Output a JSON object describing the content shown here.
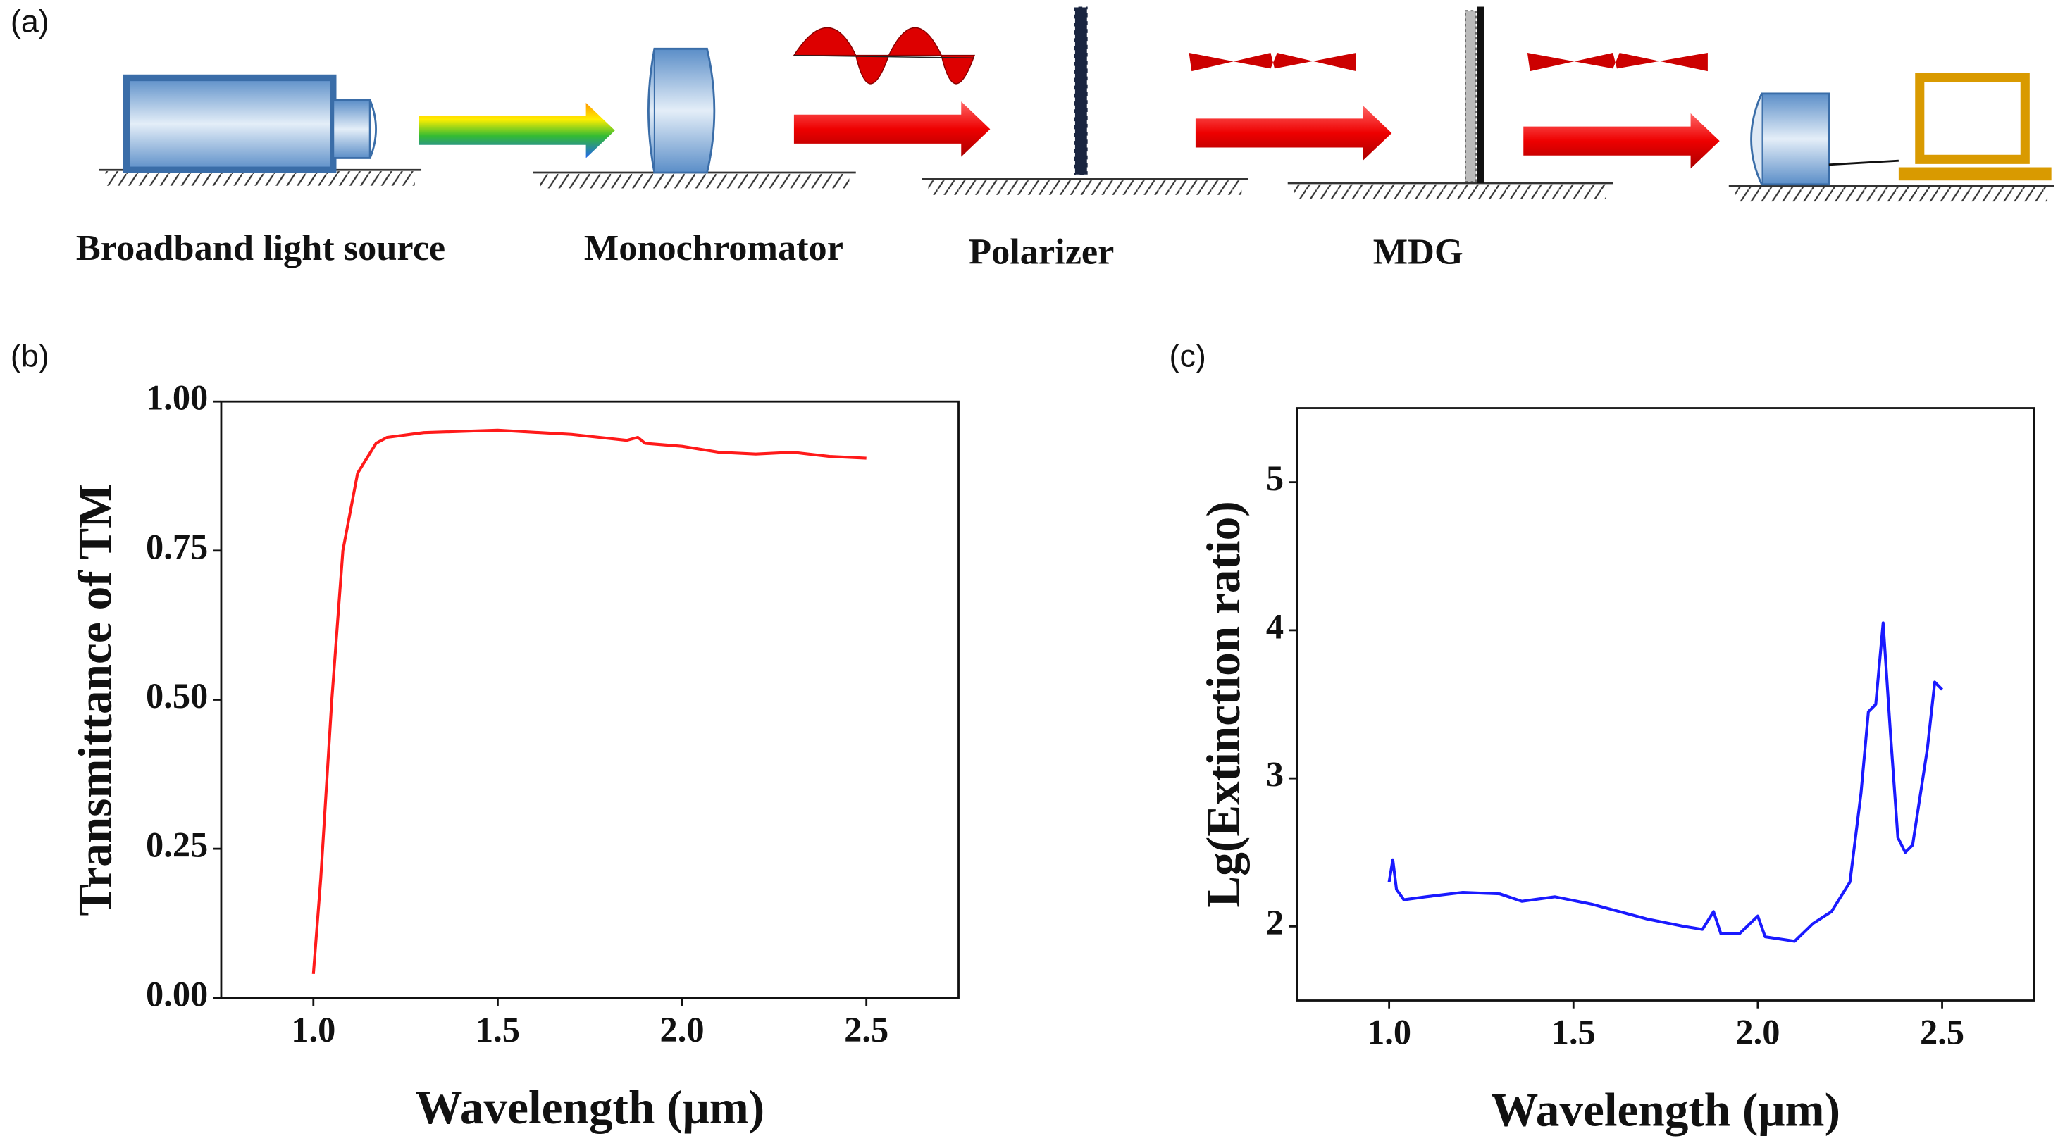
{
  "panels": [
    "(a)",
    "(b)",
    "(c)"
  ],
  "setup": {
    "labels": [
      "Broadband light source",
      "Monochromator",
      "Polarizer",
      "MDG"
    ]
  },
  "chart_data": [
    {
      "type": "line",
      "xlabel": "Wavelength (μm)",
      "ylabel": "Transmittance of TM",
      "xlim": [
        0.75,
        2.75
      ],
      "ylim": [
        0,
        1
      ],
      "xticks": [
        {
          "value": 1,
          "label": "1.0"
        },
        1.5,
        {
          "value": 2,
          "label": "2.0"
        },
        2.5
      ],
      "yticks": [
        {
          "value": 0,
          "label": "0.00"
        },
        0.25,
        {
          "value": 0.5,
          "label": "0.50"
        },
        0.75,
        {
          "value": 1,
          "label": "1.00"
        }
      ],
      "series": [
        {
          "color": "#ff1a1a",
          "x": [
            1.0,
            1.02,
            1.05,
            1.08,
            1.12,
            1.17,
            1.2,
            1.3,
            1.5,
            1.7,
            1.85,
            1.88,
            1.9,
            2.0,
            2.1,
            2.2,
            2.3,
            2.4,
            2.5
          ],
          "values": [
            0.04,
            0.2,
            0.5,
            0.75,
            0.88,
            0.93,
            0.94,
            0.948,
            0.952,
            0.945,
            0.935,
            0.94,
            0.93,
            0.925,
            0.915,
            0.912,
            0.915,
            0.908,
            0.905
          ]
        }
      ]
    },
    {
      "type": "line",
      "xlabel": "Wavelength (μm)",
      "ylabel": "Lg(Extinction ratio)",
      "xlim": [
        0.75,
        2.75
      ],
      "ylim": [
        1.5,
        5.5
      ],
      "xticks": [
        {
          "value": 1,
          "label": "1.0"
        },
        1.5,
        {
          "value": 2,
          "label": "2.0"
        },
        2.5
      ],
      "yticks": [
        2,
        3,
        4,
        5
      ],
      "series": [
        {
          "color": "#1a1aff",
          "x": [
            1.0,
            1.01,
            1.02,
            1.04,
            1.1,
            1.2,
            1.3,
            1.36,
            1.45,
            1.55,
            1.7,
            1.8,
            1.85,
            1.88,
            1.9,
            1.95,
            2.0,
            2.02,
            2.1,
            2.15,
            2.2,
            2.25,
            2.28,
            2.3,
            2.32,
            2.34,
            2.36,
            2.38,
            2.4,
            2.42,
            2.46,
            2.48,
            2.5
          ],
          "values": [
            2.3,
            2.45,
            2.25,
            2.18,
            2.2,
            2.23,
            2.22,
            2.17,
            2.2,
            2.15,
            2.05,
            2.0,
            1.98,
            2.1,
            1.95,
            1.95,
            2.07,
            1.93,
            1.9,
            2.02,
            2.1,
            2.3,
            2.9,
            3.45,
            3.5,
            4.05,
            3.3,
            2.6,
            2.5,
            2.55,
            3.2,
            3.65,
            3.6
          ]
        }
      ]
    }
  ]
}
